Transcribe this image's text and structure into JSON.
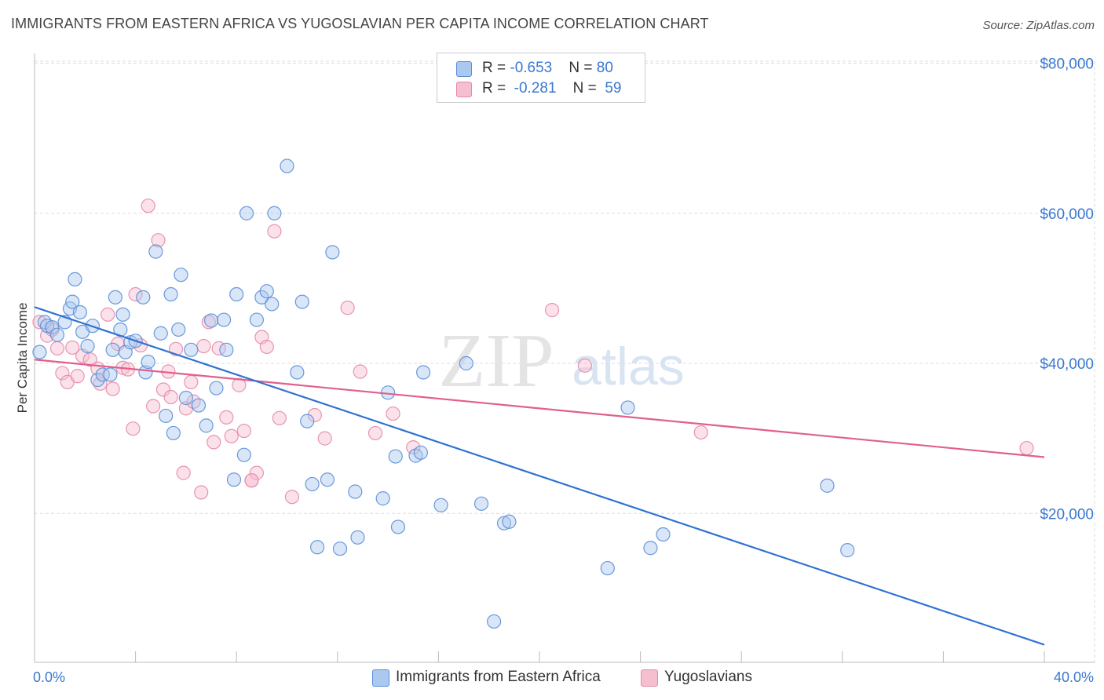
{
  "title": "IMMIGRANTS FROM EASTERN AFRICA VS YUGOSLAVIAN PER CAPITA INCOME CORRELATION CHART",
  "source": "Source: ZipAtlas.com",
  "watermark": {
    "zip": "ZIP",
    "atlas": "atlas"
  },
  "legend": {
    "series1": {
      "r_label": "R = ",
      "r_value": "-0.653",
      "n_label": "N = ",
      "n_value": "80"
    },
    "series2": {
      "r_label": "R = ",
      "r_value": "-0.281",
      "n_label": "N = ",
      "n_value": "59"
    }
  },
  "bottom_legend": [
    "Immigrants from Eastern Africa",
    "Yugoslavians"
  ],
  "colors": {
    "series1_fill": "#aac8f0",
    "series1_stroke": "#5b8fd6",
    "series1_line": "#2f72d2",
    "series2_fill": "#f6bfd0",
    "series2_stroke": "#e48aa8",
    "series2_line": "#e0608c",
    "axis_text": "#3a78d0",
    "grid": "#dddddd"
  },
  "chart_data": {
    "type": "scatter",
    "title": "IMMIGRANTS FROM EASTERN AFRICA VS YUGOSLAVIAN PER CAPITA INCOME CORRELATION CHART",
    "xlabel": "",
    "ylabel": "Per Capita Income",
    "xlim": [
      0,
      40
    ],
    "ylim": [
      0,
      80000
    ],
    "x_tick_labels": [
      "0.0%",
      "40.0%"
    ],
    "y_ticks": [
      20000,
      40000,
      60000,
      80000
    ],
    "y_tick_labels": [
      "$20,000",
      "$40,000",
      "$60,000",
      "$80,000"
    ],
    "grid": true,
    "legend_position": "top-center",
    "series": [
      {
        "name": "Immigrants from Eastern Africa",
        "r": -0.653,
        "n": 80,
        "trend": {
          "x": [
            0,
            40
          ],
          "y": [
            47500,
            2500
          ]
        },
        "points": [
          [
            0.2,
            41500
          ],
          [
            0.4,
            45500
          ],
          [
            0.5,
            45000
          ],
          [
            0.7,
            44800
          ],
          [
            0.9,
            43800
          ],
          [
            1.2,
            45500
          ],
          [
            1.4,
            47300
          ],
          [
            1.5,
            48200
          ],
          [
            1.6,
            51200
          ],
          [
            1.8,
            46800
          ],
          [
            1.9,
            44200
          ],
          [
            2.1,
            42300
          ],
          [
            2.3,
            45000
          ],
          [
            2.5,
            37800
          ],
          [
            2.7,
            38500
          ],
          [
            3.0,
            38500
          ],
          [
            3.1,
            41800
          ],
          [
            3.2,
            48800
          ],
          [
            3.4,
            44500
          ],
          [
            3.6,
            41500
          ],
          [
            3.8,
            42800
          ],
          [
            4.0,
            43000
          ],
          [
            4.3,
            48800
          ],
          [
            4.4,
            38800
          ],
          [
            4.5,
            40200
          ],
          [
            4.8,
            54900
          ],
          [
            5.0,
            44000
          ],
          [
            5.2,
            33000
          ],
          [
            5.4,
            49200
          ],
          [
            5.5,
            30700
          ],
          [
            5.7,
            44500
          ],
          [
            5.8,
            51800
          ],
          [
            6.0,
            35400
          ],
          [
            6.2,
            41800
          ],
          [
            6.5,
            34400
          ],
          [
            6.8,
            31700
          ],
          [
            7.0,
            45700
          ],
          [
            7.2,
            36700
          ],
          [
            7.5,
            45800
          ],
          [
            7.6,
            41800
          ],
          [
            7.9,
            24500
          ],
          [
            8.0,
            49200
          ],
          [
            8.3,
            27800
          ],
          [
            8.4,
            60000
          ],
          [
            8.8,
            45800
          ],
          [
            9.0,
            48800
          ],
          [
            9.2,
            49600
          ],
          [
            9.4,
            47900
          ],
          [
            9.5,
            60000
          ],
          [
            10.0,
            66300
          ],
          [
            10.4,
            38800
          ],
          [
            10.6,
            48200
          ],
          [
            10.8,
            32300
          ],
          [
            11.0,
            23900
          ],
          [
            11.2,
            15500
          ],
          [
            11.6,
            24500
          ],
          [
            11.8,
            54800
          ],
          [
            12.7,
            22900
          ],
          [
            12.8,
            16800
          ],
          [
            13.8,
            22000
          ],
          [
            14.0,
            36100
          ],
          [
            14.3,
            27600
          ],
          [
            14.4,
            18200
          ],
          [
            15.1,
            27700
          ],
          [
            15.3,
            28100
          ],
          [
            15.4,
            38800
          ],
          [
            16.1,
            21100
          ],
          [
            17.1,
            40000
          ],
          [
            17.7,
            21300
          ],
          [
            18.2,
            5600
          ],
          [
            18.6,
            18700
          ],
          [
            18.8,
            18900
          ],
          [
            22.7,
            12700
          ],
          [
            23.5,
            34100
          ],
          [
            24.4,
            15400
          ],
          [
            24.9,
            17200
          ],
          [
            31.4,
            23700
          ],
          [
            32.2,
            15100
          ],
          [
            3.5,
            46500
          ],
          [
            12.1,
            15300
          ]
        ]
      },
      {
        "name": "Yugoslavians",
        "r": -0.281,
        "n": 59,
        "trend": {
          "x": [
            0,
            40
          ],
          "y": [
            40500,
            27500
          ]
        },
        "points": [
          [
            0.2,
            45500
          ],
          [
            0.5,
            43700
          ],
          [
            0.7,
            44500
          ],
          [
            0.9,
            42000
          ],
          [
            1.1,
            38700
          ],
          [
            1.3,
            37500
          ],
          [
            1.5,
            42100
          ],
          [
            1.7,
            38300
          ],
          [
            1.9,
            41000
          ],
          [
            2.2,
            40500
          ],
          [
            2.5,
            39300
          ],
          [
            2.6,
            37300
          ],
          [
            2.9,
            46500
          ],
          [
            3.1,
            36600
          ],
          [
            3.3,
            42600
          ],
          [
            3.5,
            39400
          ],
          [
            3.7,
            39200
          ],
          [
            3.9,
            31300
          ],
          [
            4.0,
            49200
          ],
          [
            4.2,
            42400
          ],
          [
            4.5,
            61000
          ],
          [
            4.7,
            34300
          ],
          [
            4.9,
            56400
          ],
          [
            5.1,
            36500
          ],
          [
            5.3,
            38900
          ],
          [
            5.4,
            35500
          ],
          [
            5.6,
            41900
          ],
          [
            5.9,
            25400
          ],
          [
            6.0,
            34000
          ],
          [
            6.3,
            34900
          ],
          [
            6.6,
            22800
          ],
          [
            6.7,
            42300
          ],
          [
            6.9,
            45500
          ],
          [
            7.1,
            29500
          ],
          [
            7.3,
            42000
          ],
          [
            7.6,
            32800
          ],
          [
            7.8,
            30300
          ],
          [
            8.1,
            37100
          ],
          [
            8.3,
            31000
          ],
          [
            8.6,
            24400
          ],
          [
            8.8,
            25400
          ],
          [
            9.0,
            43500
          ],
          [
            9.2,
            42200
          ],
          [
            9.5,
            57600
          ],
          [
            9.7,
            32700
          ],
          [
            10.2,
            22200
          ],
          [
            11.1,
            33100
          ],
          [
            11.5,
            30000
          ],
          [
            12.4,
            47400
          ],
          [
            12.9,
            38900
          ],
          [
            13.5,
            30700
          ],
          [
            14.2,
            33300
          ],
          [
            15.0,
            28800
          ],
          [
            20.5,
            47100
          ],
          [
            21.8,
            39700
          ],
          [
            26.4,
            30800
          ],
          [
            39.3,
            28700
          ],
          [
            8.6,
            24400
          ],
          [
            6.2,
            37500
          ]
        ]
      }
    ]
  }
}
